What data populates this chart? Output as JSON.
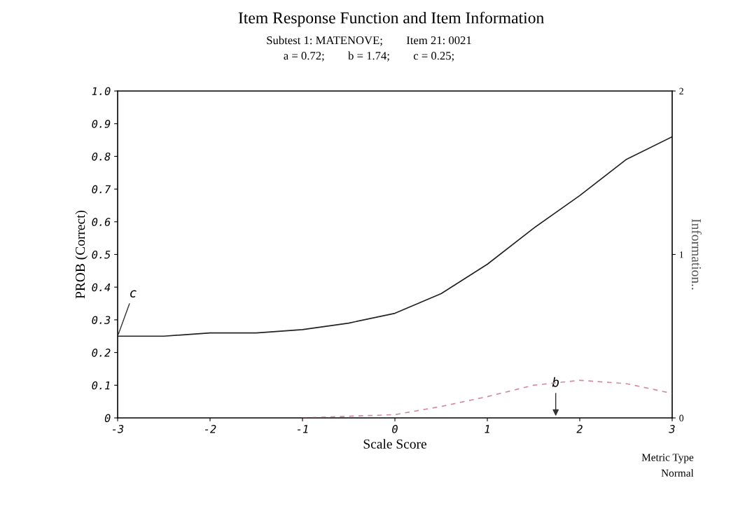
{
  "chart_data": {
    "type": "line",
    "title": "Item Response Function and Item Information",
    "subtitle": "Subtest 1: MATENOVE;        Item 21: 0021\na = 0.72;        b = 1.74;        c = 0.25;",
    "xlabel": "Scale Score",
    "ylabel": "PROB (Correct)",
    "y2label": "Information..",
    "x": [
      -3,
      -2.5,
      -2,
      -1.5,
      -1,
      -0.5,
      0,
      0.5,
      1,
      1.5,
      2,
      2.5,
      3
    ],
    "series": [
      {
        "color": "#222222",
        "line_style": "solid",
        "values": [
          0.25,
          0.25,
          0.26,
          0.26,
          0.27,
          0.29,
          0.32,
          0.38,
          0.47,
          0.58,
          0.68,
          0.79,
          0.86
        ]
      },
      {
        "color": "#d08aa8",
        "line_style": "dashed",
        "axis": "y2",
        "x": [
          -1,
          -0.5,
          0,
          0.5,
          1,
          1.5,
          2,
          2.5,
          3
        ],
        "values": [
          0,
          0.01,
          0.02,
          0.07,
          0.13,
          0.2,
          0.23,
          0.21,
          0.15
        ]
      }
    ],
    "xlim": [
      -3,
      3
    ],
    "xticks": [
      -3,
      -2,
      -1,
      0,
      1,
      2,
      3
    ],
    "ylim": [
      0,
      1.0
    ],
    "yticks": [
      0,
      0.1,
      0.2,
      0.3,
      0.4,
      0.5,
      0.6,
      0.7,
      0.8,
      0.9,
      {
        "value": 1.0,
        "label": "1.0"
      }
    ],
    "y2lim": [
      0,
      2
    ],
    "y2ticks": [
      0,
      1,
      2
    ],
    "grid": false,
    "legend": false,
    "marker": "none",
    "annotations": [
      {
        "text": "c",
        "x": -3,
        "y": 0.25
      },
      "b",
      "Metric Type\nNormal"
    ]
  }
}
